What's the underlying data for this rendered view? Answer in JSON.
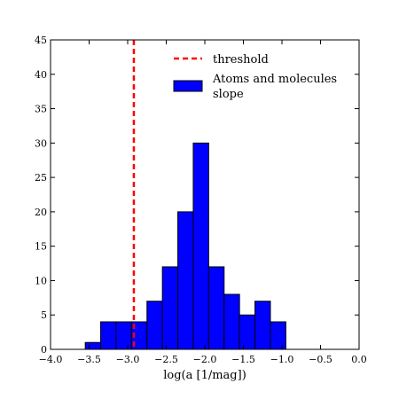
{
  "chart_data": {
    "type": "bar",
    "xlabel": "log(a [1/mag])",
    "ylabel": "",
    "title": "",
    "xlim": [
      -4.0,
      0.0
    ],
    "ylim": [
      0,
      45
    ],
    "xticks": [
      "−4.0",
      "−3.5",
      "−3.0",
      "−2.5",
      "−2.0",
      "−1.5",
      "−1.0",
      "−0.5",
      "0.0"
    ],
    "yticks": [
      "0",
      "5",
      "10",
      "15",
      "20",
      "25",
      "30",
      "35",
      "40",
      "45"
    ],
    "grid": false,
    "legend_position": "top-right",
    "threshold": {
      "name": "threshold",
      "x": -2.92,
      "color": "#ff0000",
      "style": "dashed"
    },
    "series": [
      {
        "name": "Atoms and molecules slope",
        "legend_lines": [
          "Atoms and molecules",
          "slope"
        ],
        "color": "#0000ff",
        "bin_edges": [
          -3.55,
          -3.35,
          -3.15,
          -2.95,
          -2.75,
          -2.55,
          -2.35,
          -2.15,
          -1.95,
          -1.75,
          -1.55,
          -1.35,
          -1.15,
          -0.95,
          -0.75,
          -0.55,
          -0.35,
          -0.15
        ],
        "bins": [
          {
            "start": -3.55,
            "end": -3.35,
            "count": 1
          },
          {
            "start": -3.35,
            "end": -3.15,
            "count": 4
          },
          {
            "start": -3.15,
            "end": -2.95,
            "count": 4
          },
          {
            "start": -2.95,
            "end": -2.75,
            "count": 4
          },
          {
            "start": -2.75,
            "end": -2.55,
            "count": 7
          },
          {
            "start": -2.55,
            "end": -2.35,
            "count": 12
          },
          {
            "start": -2.35,
            "end": -2.15,
            "count": 20
          },
          {
            "start": -2.15,
            "end": -1.95,
            "count": 30
          },
          {
            "start": -1.95,
            "end": -1.75,
            "count": 12
          },
          {
            "start": -1.75,
            "end": -1.55,
            "count": 8
          },
          {
            "start": -1.55,
            "end": -1.35,
            "count": 5
          },
          {
            "start": -1.35,
            "end": -1.15,
            "count": 7
          },
          {
            "start": -1.15,
            "end": -0.95,
            "count": 4
          }
        ]
      }
    ]
  }
}
